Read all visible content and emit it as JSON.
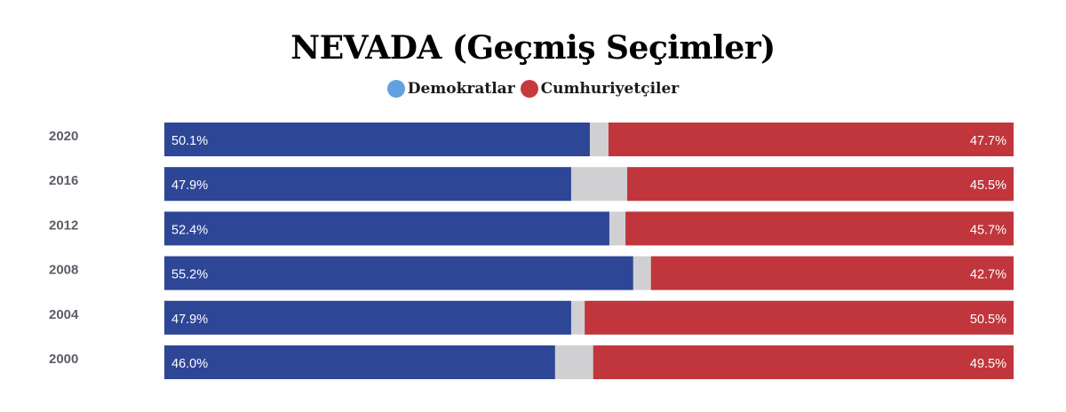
{
  "chart_data": {
    "type": "bar",
    "stacked": true,
    "orientation": "horizontal",
    "title": "NEVADA (Geçmiş Seçimler)",
    "categories": [
      "2020",
      "2016",
      "2012",
      "2008",
      "2004",
      "2000"
    ],
    "series": [
      {
        "name": "Demokratlar",
        "color": "#2e4696",
        "values": [
          50.1,
          47.9,
          52.4,
          55.2,
          47.9,
          46.0
        ],
        "labels": [
          "50.1%",
          "47.9%",
          "52.4%",
          "55.2%",
          "47.9%",
          "46.0%"
        ]
      },
      {
        "name": "Cumhuriyetçiler",
        "color": "#c0363c",
        "values": [
          47.7,
          45.5,
          45.7,
          42.7,
          50.5,
          49.5
        ],
        "labels": [
          "47.7%",
          "45.5%",
          "45.7%",
          "42.7%",
          "50.5%",
          "49.5%"
        ]
      }
    ],
    "other_color": "#d0d0d2",
    "legend_position": "top-center",
    "legend_dot_colors": {
      "Demokratlar": "#62a0e0",
      "Cumhuriyetçiler": "#c8383f"
    },
    "xlim": [
      0,
      100
    ]
  }
}
